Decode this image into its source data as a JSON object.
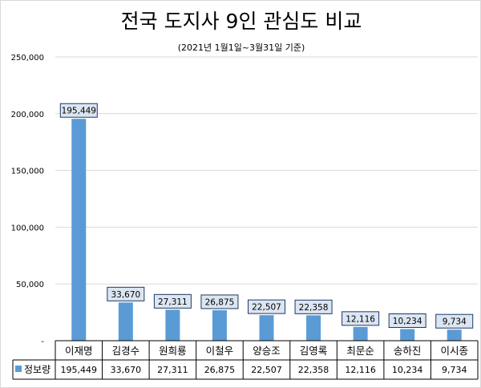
{
  "chart_data": {
    "type": "bar",
    "title": "전국 도지사 9인 관심도 비교",
    "subtitle": "(2021년 1월1일~3월31일 기준)",
    "categories": [
      "이재명",
      "김경수",
      "원희룡",
      "이철우",
      "양승조",
      "김영록",
      "최문순",
      "송하진",
      "이시종"
    ],
    "series": [
      {
        "name": "정보량",
        "values": [
          195449,
          33670,
          27311,
          26875,
          22507,
          22358,
          12116,
          10234,
          9734
        ]
      }
    ],
    "ylim": [
      0,
      250000
    ],
    "yticks": [
      0,
      50000,
      100000,
      150000,
      200000,
      250000
    ],
    "ytick_labels": [
      "-",
      "50,000",
      "100,000",
      "150,000",
      "200,000",
      "250,000"
    ],
    "data_labels": [
      "195,449",
      "33,670",
      "27,311",
      "26,875",
      "22,507",
      "22,358",
      "12,116",
      "10,234",
      "9,734"
    ],
    "grid": true,
    "legend": "data-table",
    "colors": {
      "bar": "#5b9bd5",
      "grid": "#d9d9d9",
      "label_box_fill": "#dce6f2",
      "label_box_border": "#1f3864"
    }
  }
}
